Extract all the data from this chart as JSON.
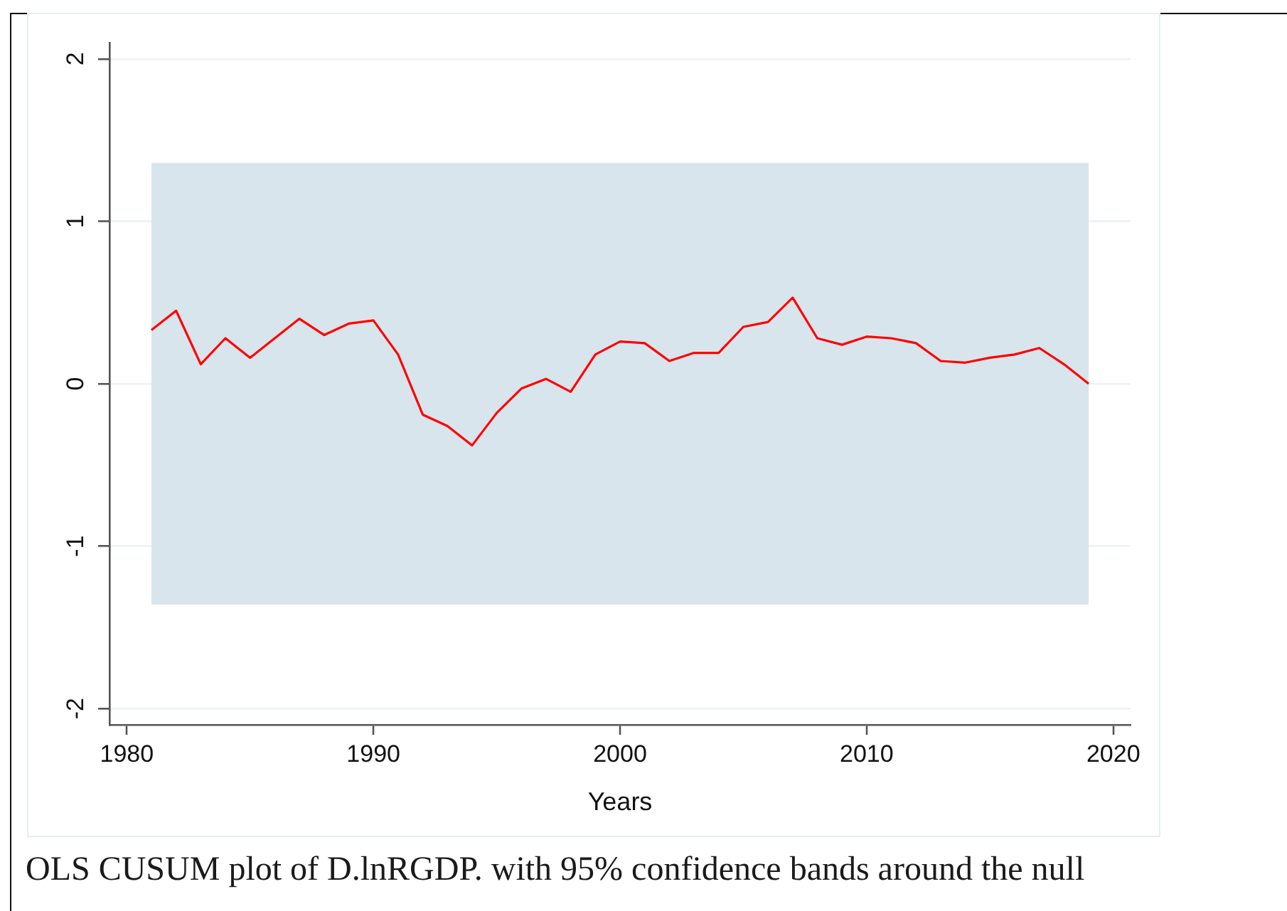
{
  "chart_data": {
    "type": "line",
    "xlabel": "Years",
    "x": [
      1981,
      1982,
      1983,
      1984,
      1985,
      1986,
      1987,
      1988,
      1989,
      1990,
      1991,
      1992,
      1993,
      1994,
      1995,
      1996,
      1997,
      1998,
      1999,
      2000,
      2001,
      2002,
      2003,
      2004,
      2005,
      2006,
      2007,
      2008,
      2009,
      2010,
      2011,
      2012,
      2013,
      2014,
      2015,
      2016,
      2017,
      2018,
      2019
    ],
    "series": [
      {
        "color": "#ff0000",
        "values": [
          0.33,
          0.45,
          0.12,
          0.28,
          0.16,
          0.28,
          0.4,
          0.3,
          0.37,
          0.39,
          0.18,
          -0.19,
          -0.26,
          -0.38,
          -0.18,
          -0.03,
          0.03,
          -0.05,
          0.18,
          0.26,
          0.25,
          0.14,
          0.19,
          0.19,
          0.35,
          0.38,
          0.53,
          0.28,
          0.24,
          0.29,
          0.28,
          0.25,
          0.14,
          0.13,
          0.16,
          0.18,
          0.22,
          0.12,
          0.0
        ]
      }
    ],
    "xlim": [
      1979.3,
      2020.7
    ],
    "xticks": [
      1980,
      1990,
      2000,
      2010,
      2020
    ],
    "ylim": [
      -2.1,
      2.1
    ],
    "yticks": [
      -2,
      -1,
      0,
      1,
      2
    ],
    "bands": [
      {
        "axis": "y",
        "from": -1.36,
        "to": 1.36,
        "color": "#d9e5ec"
      }
    ],
    "grid": "y",
    "annotations": [
      "OLS CUSUM plot of D.lnRGDP. with 95% confidence bands around the null"
    ]
  }
}
